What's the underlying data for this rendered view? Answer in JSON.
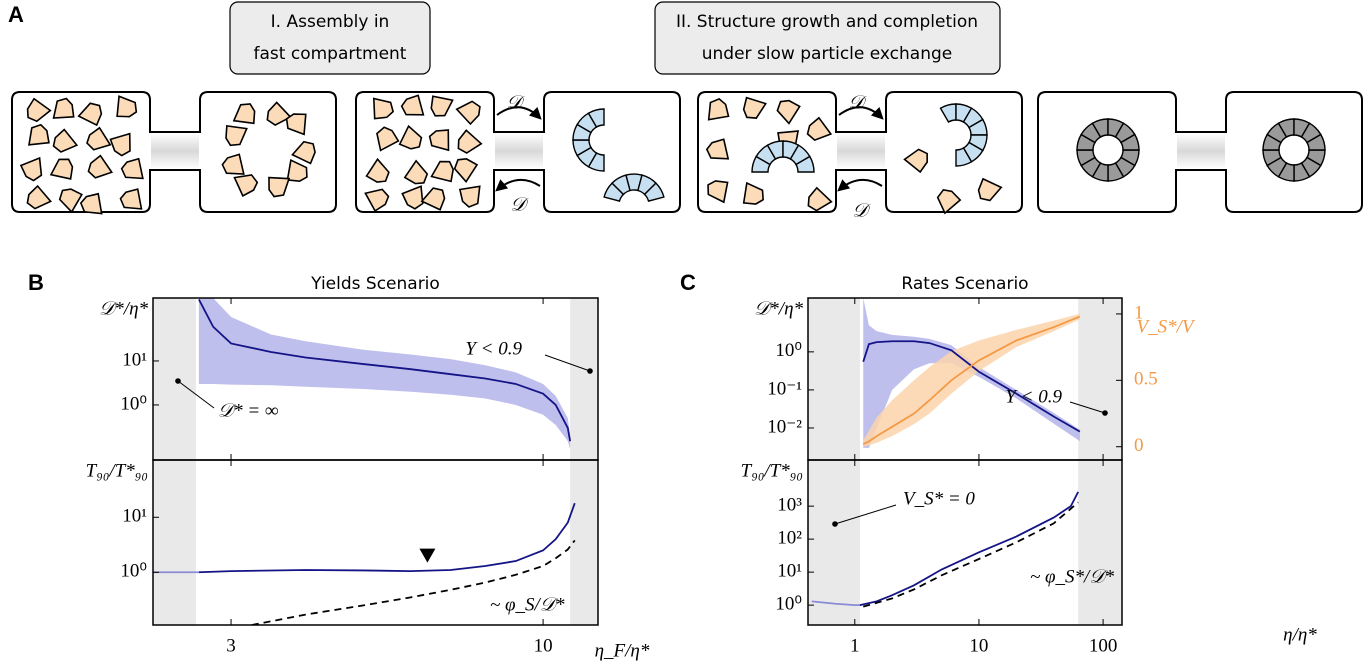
{
  "panel_a": {
    "label": "A",
    "stage_1": [
      "I. Assembly in",
      "fast compartment"
    ],
    "stage_2": [
      "II. Structure growth and completion",
      "under slow particle exchange"
    ],
    "exchange_labels": [
      "𝒟",
      "𝒟",
      "𝒟",
      "𝒟"
    ]
  },
  "chart_data": [
    {
      "type": "line",
      "panel_label": "B",
      "title": "Yields Scenario",
      "x_label": "η_F/η*",
      "xscale": "log",
      "xlim": [
        2.22,
        12.36
      ],
      "xticks": [
        3,
        10
      ],
      "shaded_x": [
        [
          2.22,
          2.62
        ],
        [
          11.1,
          12.36
        ]
      ],
      "subplots": [
        {
          "y_label": "𝒟*/η*",
          "yscale": "log",
          "ylim": [
            0.056,
            270
          ],
          "yticks": [
            {
              "value": 1,
              "label": "10⁰"
            },
            {
              "value": 10,
              "label": "10¹"
            }
          ],
          "series": [
            {
              "color": "#141487",
              "band_color": "#b4b4ea",
              "x": [
                2.65,
                2.8,
                3,
                3.5,
                4,
                5,
                6,
                7,
                8,
                9,
                10,
                10.5,
                11,
                11.1
              ],
              "values": [
                250,
                60,
                25,
                16,
                12,
                8.5,
                6.5,
                5,
                4,
                3,
                1.8,
                1.0,
                0.3,
                0.15
              ],
              "lower": [
                3,
                3,
                2.9,
                2.8,
                2.6,
                2.3,
                2.0,
                1.7,
                1.4,
                1.0,
                0.6,
                0.35,
                0.15,
                0.1
              ],
              "upper": [
                270,
                270,
                100,
                40,
                28,
                18,
                14,
                11,
                8,
                5.5,
                3,
                1.6,
                0.5,
                0.2
              ]
            }
          ],
          "annotations": [
            "Y < 0.9",
            "𝒟* = ∞"
          ]
        },
        {
          "y_label": "T₉₀/T*₉₀",
          "yscale": "log",
          "ylim": [
            0.11,
            110
          ],
          "yticks": [
            {
              "value": 1,
              "label": "10⁰"
            },
            {
              "value": 10,
              "label": "10¹"
            }
          ],
          "series": [
            {
              "color": "#8a8ad6",
              "x": [
                2.22,
                2.65
              ],
              "values": [
                1.0,
                1.0
              ]
            },
            {
              "color": "#141487",
              "x": [
                2.65,
                3,
                4,
                5,
                6,
                7,
                8,
                9,
                10,
                10.5,
                11,
                11.3
              ],
              "values": [
                1.0,
                1.05,
                1.1,
                1.08,
                1.05,
                1.1,
                1.3,
                1.6,
                2.5,
                4,
                8,
                18
              ]
            },
            {
              "color": "#000000",
              "dashed": true,
              "x": [
                3.25,
                4,
                5,
                6,
                7,
                8,
                9,
                10,
                10.5,
                11,
                11.3
              ],
              "values": [
                0.11,
                0.17,
                0.25,
                0.35,
                0.48,
                0.65,
                0.9,
                1.3,
                1.8,
                2.6,
                3.8
              ]
            }
          ],
          "markers": [
            {
              "x": 6.4,
              "y": 1.5
            }
          ],
          "annotations": [
            "~ φ_S/𝒟*"
          ]
        }
      ]
    },
    {
      "type": "line",
      "panel_label": "C",
      "title": "Rates Scenario",
      "x_label": "η/η*",
      "xscale": "log",
      "xlim": [
        0.42,
        142
      ],
      "xticks": [
        1,
        10,
        100
      ],
      "shaded_x": [
        [
          0.42,
          1.1
        ],
        [
          63,
          142
        ]
      ],
      "subplots": [
        {
          "y_label": "𝒟*/η*",
          "yscale": "log",
          "ylim": [
            0.00144,
            26
          ],
          "yticks": [
            {
              "value": 0.01,
              "label": "10⁻²"
            },
            {
              "value": 0.1,
              "label": "10⁻¹"
            },
            {
              "value": 1,
              "label": "10⁰"
            }
          ],
          "y2_label": "V_S*/V",
          "y2lim": [
            -0.1,
            1.12
          ],
          "y2ticks": [
            0,
            0.5,
            1
          ],
          "series": [
            {
              "color": "#141487",
              "band_color": "#b4b4ea",
              "x": [
                1.17,
                1.3,
                1.5,
                2,
                3,
                4,
                6,
                10,
                20,
                40,
                65
              ],
              "values": [
                0.55,
                1.6,
                1.8,
                1.9,
                1.9,
                1.7,
                1.1,
                0.3,
                0.08,
                0.02,
                0.008
              ],
              "lower": [
                0.003,
                0.003,
                0.01,
                0.1,
                0.35,
                0.5,
                0.5,
                0.22,
                0.06,
                0.013,
                0.0045
              ],
              "upper": [
                26,
                5,
                3.5,
                2.8,
                2.5,
                2.2,
                1.5,
                0.4,
                0.1,
                0.025,
                0.009
              ]
            },
            {
              "color": "#f39a45",
              "band_color": "#fbd3ab",
              "axis": "y2",
              "x": [
                1.17,
                1.3,
                1.5,
                2,
                3,
                4,
                6,
                10,
                20,
                40,
                65
              ],
              "values": [
                0.02,
                0.04,
                0.08,
                0.15,
                0.25,
                0.35,
                0.5,
                0.65,
                0.8,
                0.9,
                0.98
              ],
              "lower": [
                0.0,
                0.01,
                0.03,
                0.08,
                0.17,
                0.25,
                0.4,
                0.57,
                0.75,
                0.87,
                0.96
              ],
              "upper": [
                0.05,
                0.12,
                0.22,
                0.35,
                0.5,
                0.6,
                0.72,
                0.8,
                0.88,
                0.95,
                1.0
              ]
            }
          ],
          "annotations": [
            "Y < 0.9"
          ]
        },
        {
          "y_label": "T₉₀/T*₉₀",
          "yscale": "log",
          "ylim": [
            0.25,
            25000
          ],
          "yticks": [
            {
              "value": 1,
              "label": "10⁰"
            },
            {
              "value": 10,
              "label": "10¹"
            },
            {
              "value": 100,
              "label": "10²"
            },
            {
              "value": 1000,
              "label": "10³"
            }
          ],
          "series": [
            {
              "color": "#8a8ad6",
              "x": [
                0.45,
                0.7,
                1.0,
                1.1
              ],
              "values": [
                1.3,
                1.1,
                1.0,
                1.0
              ]
            },
            {
              "color": "#141487",
              "x": [
                1.1,
                1.5,
                2,
                3,
                5,
                10,
                20,
                40,
                55,
                63
              ],
              "values": [
                1.0,
                1.3,
                2,
                4,
                12,
                40,
                120,
                450,
                1000,
                2700
              ]
            },
            {
              "color": "#000000",
              "dashed": true,
              "x": [
                1.17,
                2,
                3,
                5,
                10,
                20,
                40,
                63
              ],
              "values": [
                0.9,
                1.6,
                3,
                8,
                25,
                80,
                300,
                1300
              ]
            }
          ],
          "annotations": [
            "V_S* = 0",
            "~ φ_S*/𝒟*"
          ]
        }
      ]
    }
  ]
}
